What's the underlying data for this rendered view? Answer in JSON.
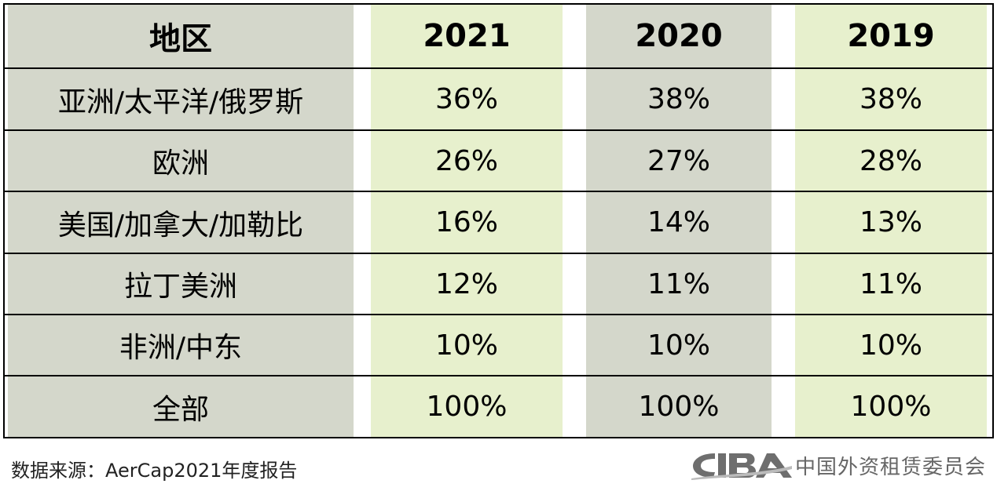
{
  "table": {
    "headers": [
      "地区",
      "2021",
      "2020",
      "2019"
    ],
    "rows": [
      [
        "亚洲/太平洋/俄罗斯",
        "36%",
        "38%",
        "38%"
      ],
      [
        "欧洲",
        "26%",
        "27%",
        "28%"
      ],
      [
        "美国/加拿大/加勒比",
        "16%",
        "14%",
        "13%"
      ],
      [
        "拉丁美洲",
        "12%",
        "11%",
        "11%"
      ],
      [
        "非洲/中东",
        "10%",
        "10%",
        "10%"
      ],
      [
        "全部",
        "100%",
        "100%",
        "100%"
      ]
    ]
  },
  "chart_data": {
    "type": "table",
    "columns": [
      "地区",
      "2021",
      "2020",
      "2019"
    ],
    "rows": [
      {
        "region": "亚洲/太平洋/俄罗斯",
        "2021": 36,
        "2020": 38,
        "2019": 38
      },
      {
        "region": "欧洲",
        "2021": 26,
        "2020": 27,
        "2019": 28
      },
      {
        "region": "美国/加拿大/加勒比",
        "2021": 16,
        "2020": 14,
        "2019": 13
      },
      {
        "region": "拉丁美洲",
        "2021": 12,
        "2020": 11,
        "2019": 11
      },
      {
        "region": "非洲/中东",
        "2021": 10,
        "2020": 10,
        "2019": 10
      },
      {
        "region": "全部",
        "2021": 100,
        "2020": 100,
        "2019": 100
      }
    ]
  },
  "footer": {
    "source": "数据来源：AerCap2021年度报告",
    "logo_mark": "CIBA",
    "logo_text": "中国外资租赁委员会"
  },
  "colors": {
    "gray_column": "#d4d7cb",
    "green_column": "#e7f0cd",
    "logo": "#6e6e6e"
  }
}
